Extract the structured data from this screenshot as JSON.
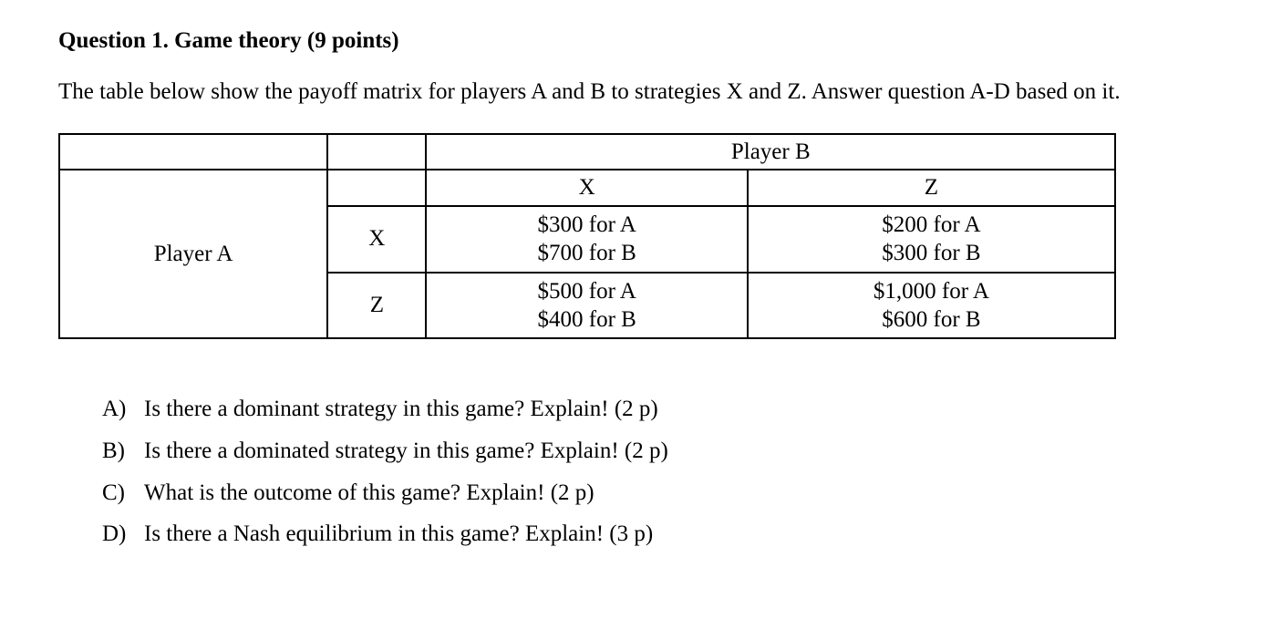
{
  "title": "Question 1. Game theory (9 points)",
  "intro": "The table below show the payoff matrix for players A and B to strategies X and Z. Answer question A-D based on it.",
  "table": {
    "playerB_label": "Player B",
    "playerA_label": "Player A",
    "col_headers": [
      "X",
      "Z"
    ],
    "row_headers": [
      "X",
      "Z"
    ],
    "cells": [
      [
        {
          "a": "$300 for A",
          "b": "$700 for B"
        },
        {
          "a": "$200 for A",
          "b": "$300 for B"
        }
      ],
      [
        {
          "a": "$500 for A",
          "b": "$400 for B"
        },
        {
          "a": "$1,000 for A",
          "b": "$600 for B"
        }
      ]
    ],
    "border_color": "#000000",
    "background_color": "#ffffff",
    "font_size": 25
  },
  "questions": [
    {
      "marker": "A)",
      "text": "Is there a dominant strategy in this game? Explain! (2 p)"
    },
    {
      "marker": "B)",
      "text": "Is there a dominated strategy in this game? Explain! (2 p)"
    },
    {
      "marker": "C)",
      "text": "What is the outcome of this game? Explain! (2 p)"
    },
    {
      "marker": "D)",
      "text": "Is there a Nash equilibrium in this game? Explain! (3 p)"
    }
  ]
}
